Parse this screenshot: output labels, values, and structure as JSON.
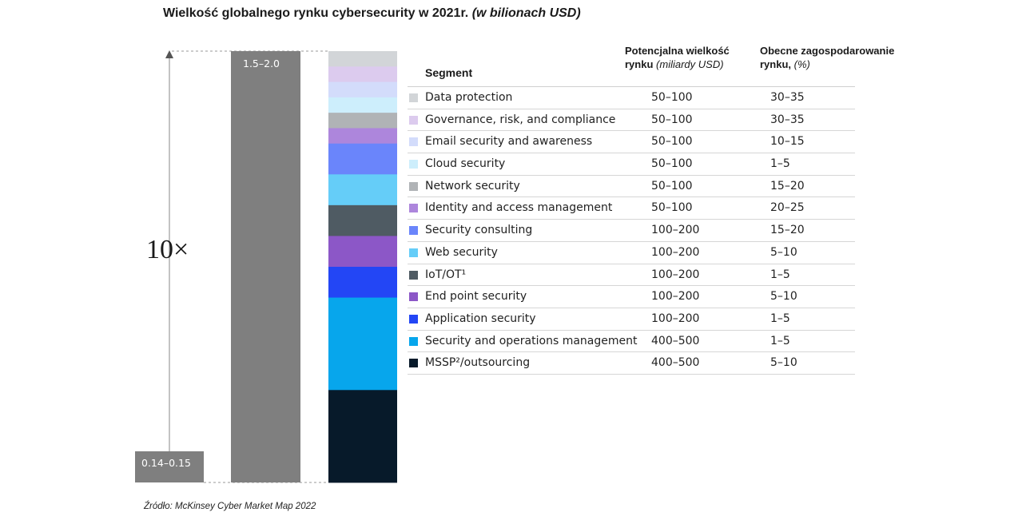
{
  "title": {
    "main": "Wielkość globalnego rynku cybersecurity w 2021r.",
    "suffix": "(w bilionach USD)"
  },
  "headers": {
    "segment": "Segment",
    "potential_line1": "Potencjalna wielkość",
    "potential_line2_bold": "rynku",
    "potential_line2_italic": "(miliardy USD)",
    "current_line1": "Obecne zagospodarowanie",
    "current_line2_bold": "rynku,",
    "current_line2_italic": "(%)"
  },
  "source": "Źródło: McKinsey Cyber Market Map 2022",
  "chart_data": {
    "type": "bar",
    "title": "Wielkość globalnego rynku cybersecurity w 2021r. (w bilionach USD)",
    "multiplier_label": "10×",
    "bars": [
      {
        "label": "0.14–0.15",
        "value_range": [
          0.14,
          0.15
        ],
        "color": "#7f7f7f"
      },
      {
        "label": "1.5–2.0",
        "value_range": [
          1.5,
          2.0
        ],
        "color": "#7f7f7f"
      }
    ],
    "stacked_bar": {
      "comment_free": true,
      "order_top_to_bottom": [
        "Data protection",
        "Governance, risk, and compliance",
        "Email security and awareness",
        "Cloud security",
        "Network security",
        "Identity and access management",
        "Security consulting",
        "Web security",
        "IoT/OT¹",
        "End point security",
        "Application security",
        "Security and operations management",
        "MSSP²/outsourcing"
      ]
    },
    "segments": [
      {
        "name": "Data protection",
        "potential": "50–100",
        "current": "30–35",
        "potential_mid": 75,
        "color": "#d2d5d8"
      },
      {
        "name": "Governance, risk, and compliance",
        "potential": "50–100",
        "current": "30–35",
        "potential_mid": 75,
        "color": "#dccbee"
      },
      {
        "name": "Email security and awareness",
        "potential": "50–100",
        "current": "10–15",
        "potential_mid": 75,
        "color": "#d3dcfb"
      },
      {
        "name": "Cloud security",
        "potential": "50–100",
        "current": "1–5",
        "potential_mid": 75,
        "color": "#cdeefc"
      },
      {
        "name": "Network security",
        "potential": "50–100",
        "current": "15–20",
        "potential_mid": 75,
        "color": "#b0b3b6"
      },
      {
        "name": "Identity and access management",
        "potential": "50–100",
        "current": "20–25",
        "potential_mid": 75,
        "color": "#ad86dc"
      },
      {
        "name": "Security consulting",
        "potential": "100–200",
        "current": "15–20",
        "potential_mid": 150,
        "color": "#6a85fb"
      },
      {
        "name": "Web security",
        "potential": "100–200",
        "current": "5–10",
        "potential_mid": 150,
        "color": "#65cdf8"
      },
      {
        "name": "IoT/OT¹",
        "potential": "100–200",
        "current": "1–5",
        "potential_mid": 150,
        "color": "#4f5b63"
      },
      {
        "name": "End point security",
        "potential": "100–200",
        "current": "5–10",
        "potential_mid": 150,
        "color": "#8c57c7"
      },
      {
        "name": "Application security",
        "potential": "100–200",
        "current": "1–5",
        "potential_mid": 150,
        "color": "#2346f5"
      },
      {
        "name": "Security and operations management",
        "potential": "400–500",
        "current": "1–5",
        "potential_mid": 450,
        "color": "#07a6ec"
      },
      {
        "name": "MSSP²/outsourcing",
        "potential": "400–500",
        "current": "5–10",
        "potential_mid": 450,
        "color": "#071a2a"
      }
    ]
  }
}
